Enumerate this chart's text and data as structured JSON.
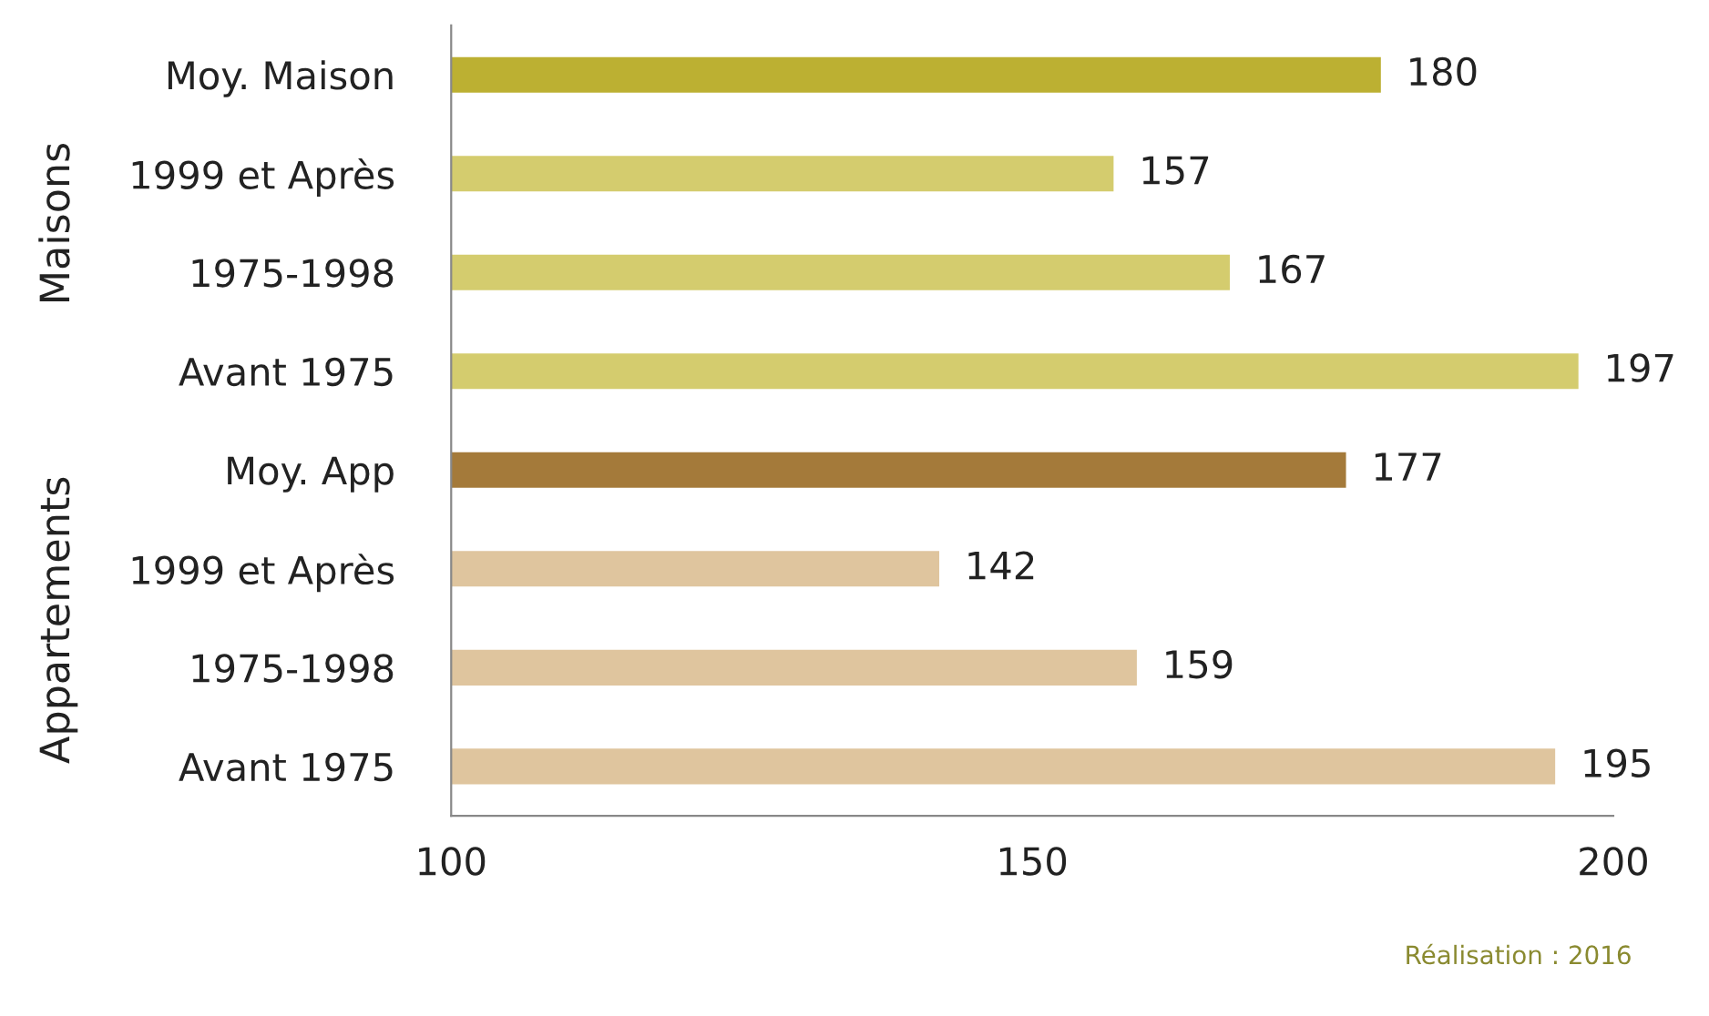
{
  "chart_data": {
    "type": "bar",
    "orientation": "horizontal",
    "categories": [
      "Moy. Maison",
      "1999 et Après",
      "1975-1998",
      "Avant 1975",
      "Moy. App",
      "1999 et Après",
      "1975-1998",
      "Avant 1975"
    ],
    "values": [
      180,
      157,
      167,
      197,
      177,
      142,
      159,
      195
    ],
    "colors": [
      "#bcb032",
      "#d4cc6e",
      "#d4cc6e",
      "#d4cc6e",
      "#a47a3a",
      "#dfc59e",
      "#dfc59e",
      "#dfc59e"
    ],
    "xlim": [
      100,
      200
    ],
    "xticks": [
      100,
      150,
      200
    ],
    "data_labels": true,
    "grid": false,
    "legend": false,
    "annotations": [
      "Maisons",
      "Appartements",
      "Réalisation : 2016"
    ]
  }
}
